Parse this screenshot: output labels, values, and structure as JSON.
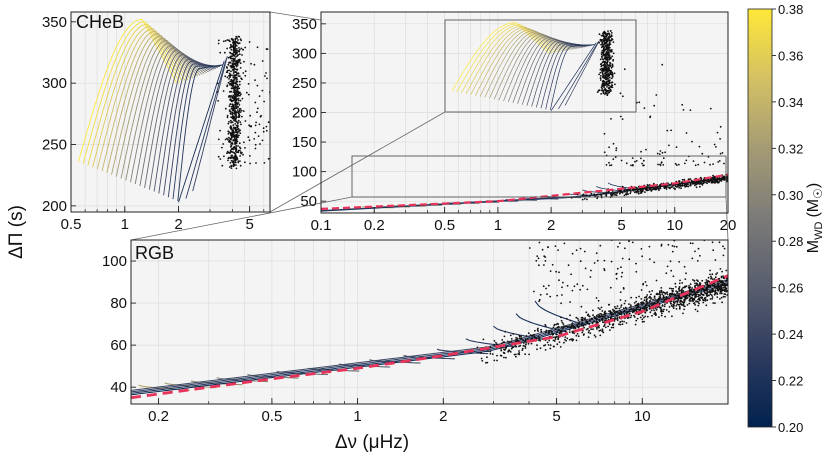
{
  "chart_data": [
    {
      "panel": "CHeB inset",
      "type": "line",
      "label": "CHeB",
      "x_scale": "log",
      "y_scale": "linear",
      "xlim": [
        0.5,
        6.5
      ],
      "ylim": [
        195,
        358
      ],
      "xticks": [
        "0.5",
        "1",
        "2",
        "5"
      ],
      "yticks": [
        "200",
        "250",
        "300",
        "350"
      ],
      "series": [
        {
          "mass_Msun": 0.38,
          "x": [
            0.55,
            0.7,
            0.9,
            1.15,
            1.35,
            1.6,
            2.0
          ],
          "y": [
            235,
            270,
            310,
            345,
            352,
            335,
            300
          ]
        },
        {
          "mass_Msun": 0.34,
          "x": [
            0.75,
            0.95,
            1.2,
            1.5,
            1.8,
            2.3,
            2.8
          ],
          "y": [
            225,
            262,
            300,
            335,
            340,
            318,
            275
          ]
        },
        {
          "mass_Msun": 0.3,
          "x": [
            1.1,
            1.35,
            1.7,
            2.1,
            2.5,
            3.0,
            3.5
          ],
          "y": [
            215,
            250,
            288,
            320,
            322,
            300,
            265
          ]
        },
        {
          "mass_Msun": 0.26,
          "x": [
            1.7,
            2.0,
            2.5,
            3.0,
            3.3,
            3.6,
            4.0
          ],
          "y": [
            205,
            235,
            265,
            295,
            305,
            312,
            318
          ]
        },
        {
          "mass_Msun": 0.22,
          "x": [
            2.0,
            2.3,
            2.8,
            3.2,
            3.5,
            3.8,
            4.2
          ],
          "y": [
            203,
            228,
            258,
            288,
            300,
            308,
            312
          ]
        }
      ],
      "scatter_summary": {
        "x_range": [
          3.3,
          5.2
        ],
        "y_range": [
          232,
          340
        ]
      }
    },
    {
      "panel": "full",
      "type": "line",
      "x_scale": "log",
      "y_scale": "linear",
      "xlim": [
        0.1,
        20
      ],
      "ylim": [
        30,
        370
      ],
      "xticks": [
        "0.1",
        "0.2",
        "0.5",
        "1",
        "2",
        "5",
        "10",
        "20"
      ],
      "yticks": [
        "50",
        "100",
        "150",
        "200",
        "250",
        "300",
        "350"
      ],
      "series": [
        {
          "name": "fit",
          "style": "dashed",
          "color": "#e8345a",
          "x": [
            0.1,
            1,
            10,
            20
          ],
          "y": [
            37,
            50,
            80,
            95
          ]
        }
      ],
      "scatter_summary": {
        "CHeB": {
          "x_range": [
            3.3,
            5.2
          ],
          "y_range": [
            232,
            340
          ]
        },
        "RGB": {
          "x_range": [
            2.5,
            20
          ],
          "y_range": [
            35,
            110
          ]
        }
      }
    },
    {
      "panel": "RGB inset",
      "type": "line",
      "label": "RGB",
      "x_scale": "log",
      "y_scale": "linear",
      "xlim": [
        0.16,
        20
      ],
      "ylim": [
        32,
        110
      ],
      "xticks": [
        "0.2",
        "0.5",
        "1",
        "2",
        "5",
        "10"
      ],
      "yticks": [
        "40",
        "60",
        "80",
        "100"
      ],
      "xlabel": "Δν (μHz)",
      "ylabel": "ΔΠ (s)",
      "series": [
        {
          "name": "fit",
          "style": "dashed",
          "color": "#e8345a",
          "x": [
            0.16,
            0.5,
            1,
            2,
            5,
            10,
            20
          ],
          "y": [
            35,
            44,
            49,
            55,
            64,
            76,
            93
          ]
        },
        {
          "name": "track",
          "color": "#1f3a7a",
          "x": [
            0.16,
            0.5,
            1,
            2,
            5,
            10,
            20
          ],
          "y": [
            33.5,
            42.5,
            48,
            53.5,
            61,
            72,
            86
          ]
        }
      ],
      "hooks": [
        {
          "x": 0.17,
          "y": 41,
          "mass_Msun": 0.33
        },
        {
          "x": 0.21,
          "y": 42,
          "mass_Msun": 0.32
        },
        {
          "x": 0.26,
          "y": 43,
          "mass_Msun": 0.31
        },
        {
          "x": 0.32,
          "y": 44.5,
          "mass_Msun": 0.3
        },
        {
          "x": 0.41,
          "y": 46,
          "mass_Msun": 0.29
        },
        {
          "x": 0.52,
          "y": 47.5,
          "mass_Msun": 0.28
        },
        {
          "x": 0.67,
          "y": 49,
          "mass_Msun": 0.27
        },
        {
          "x": 0.86,
          "y": 51,
          "mass_Msun": 0.26
        },
        {
          "x": 1.1,
          "y": 53,
          "mass_Msun": 0.25
        },
        {
          "x": 1.45,
          "y": 55,
          "mass_Msun": 0.24
        },
        {
          "x": 1.9,
          "y": 58,
          "mass_Msun": 0.235
        },
        {
          "x": 2.4,
          "y": 63,
          "mass_Msun": 0.23
        },
        {
          "x": 3.0,
          "y": 69,
          "mass_Msun": 0.225
        },
        {
          "x": 3.6,
          "y": 75,
          "mass_Msun": 0.22
        },
        {
          "x": 4.2,
          "y": 81,
          "mass_Msun": 0.215
        }
      ],
      "scatter_summary": {
        "x_range": [
          2.5,
          20
        ],
        "y_range": [
          35,
          110
        ]
      }
    }
  ],
  "colorbar": {
    "label": "M",
    "label_sub": "WD",
    "label_unit": "(M",
    "label_unit_tail": ")",
    "range": [
      0.2,
      0.38
    ],
    "ticks": [
      "0.38",
      "0.36",
      "0.34",
      "0.32",
      "0.30",
      "0.28",
      "0.26",
      "0.24",
      "0.22",
      "0.20"
    ],
    "colors": [
      "#00224e",
      "#2e3b5f",
      "#575d6d",
      "#7c7b78",
      "#a59c74",
      "#d3c064",
      "#fee838"
    ]
  }
}
